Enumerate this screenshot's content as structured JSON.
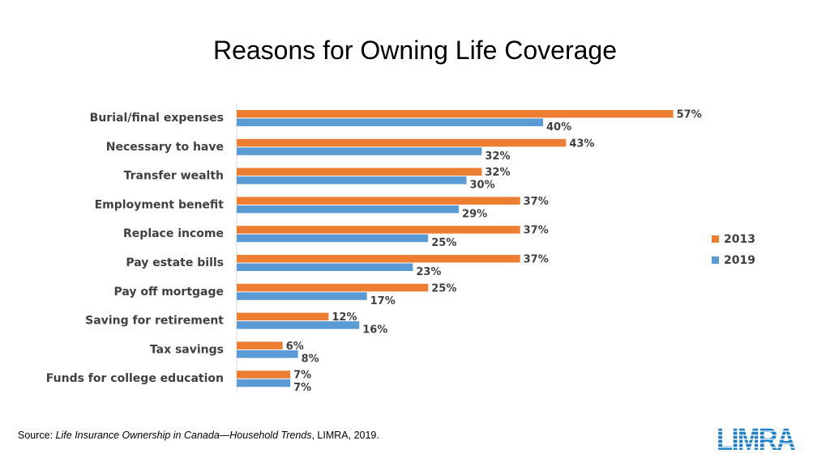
{
  "title": "Reasons for Owning Life Coverage",
  "chart_data": {
    "type": "bar",
    "orientation": "horizontal",
    "categories": [
      "Burial/final expenses",
      "Necessary to have",
      "Transfer wealth",
      "Employment benefit",
      "Replace income",
      "Pay estate bills",
      "Pay off mortgage",
      "Saving for retirement",
      "Tax savings",
      "Funds for college education"
    ],
    "series": [
      {
        "name": "2013",
        "color": "#ED7D31",
        "values": [
          57,
          43,
          32,
          37,
          37,
          37,
          25,
          12,
          6,
          7
        ],
        "labels": [
          "57%",
          "43%",
          "32%",
          "37%",
          "37%",
          "37%",
          "25%",
          "12%",
          "6%",
          "7%"
        ]
      },
      {
        "name": "2019",
        "color": "#5B9BD5",
        "values": [
          40,
          32,
          30,
          29,
          25,
          23,
          17,
          16,
          8,
          7
        ],
        "labels": [
          "40%",
          "32%",
          "30%",
          "29%",
          "25%",
          "23%",
          "17%",
          "16%",
          "8%",
          "7%"
        ]
      }
    ],
    "xlim": [
      0,
      60
    ],
    "legend_position": "right",
    "grid": false
  },
  "source": {
    "prefix": "Source: ",
    "title": "Life Insurance Ownership  in Canada—Household Trends",
    "suffix": ", LIMRA,  2019."
  },
  "logo": {
    "text": "LIMRA",
    "color": "#1F7FC4"
  }
}
